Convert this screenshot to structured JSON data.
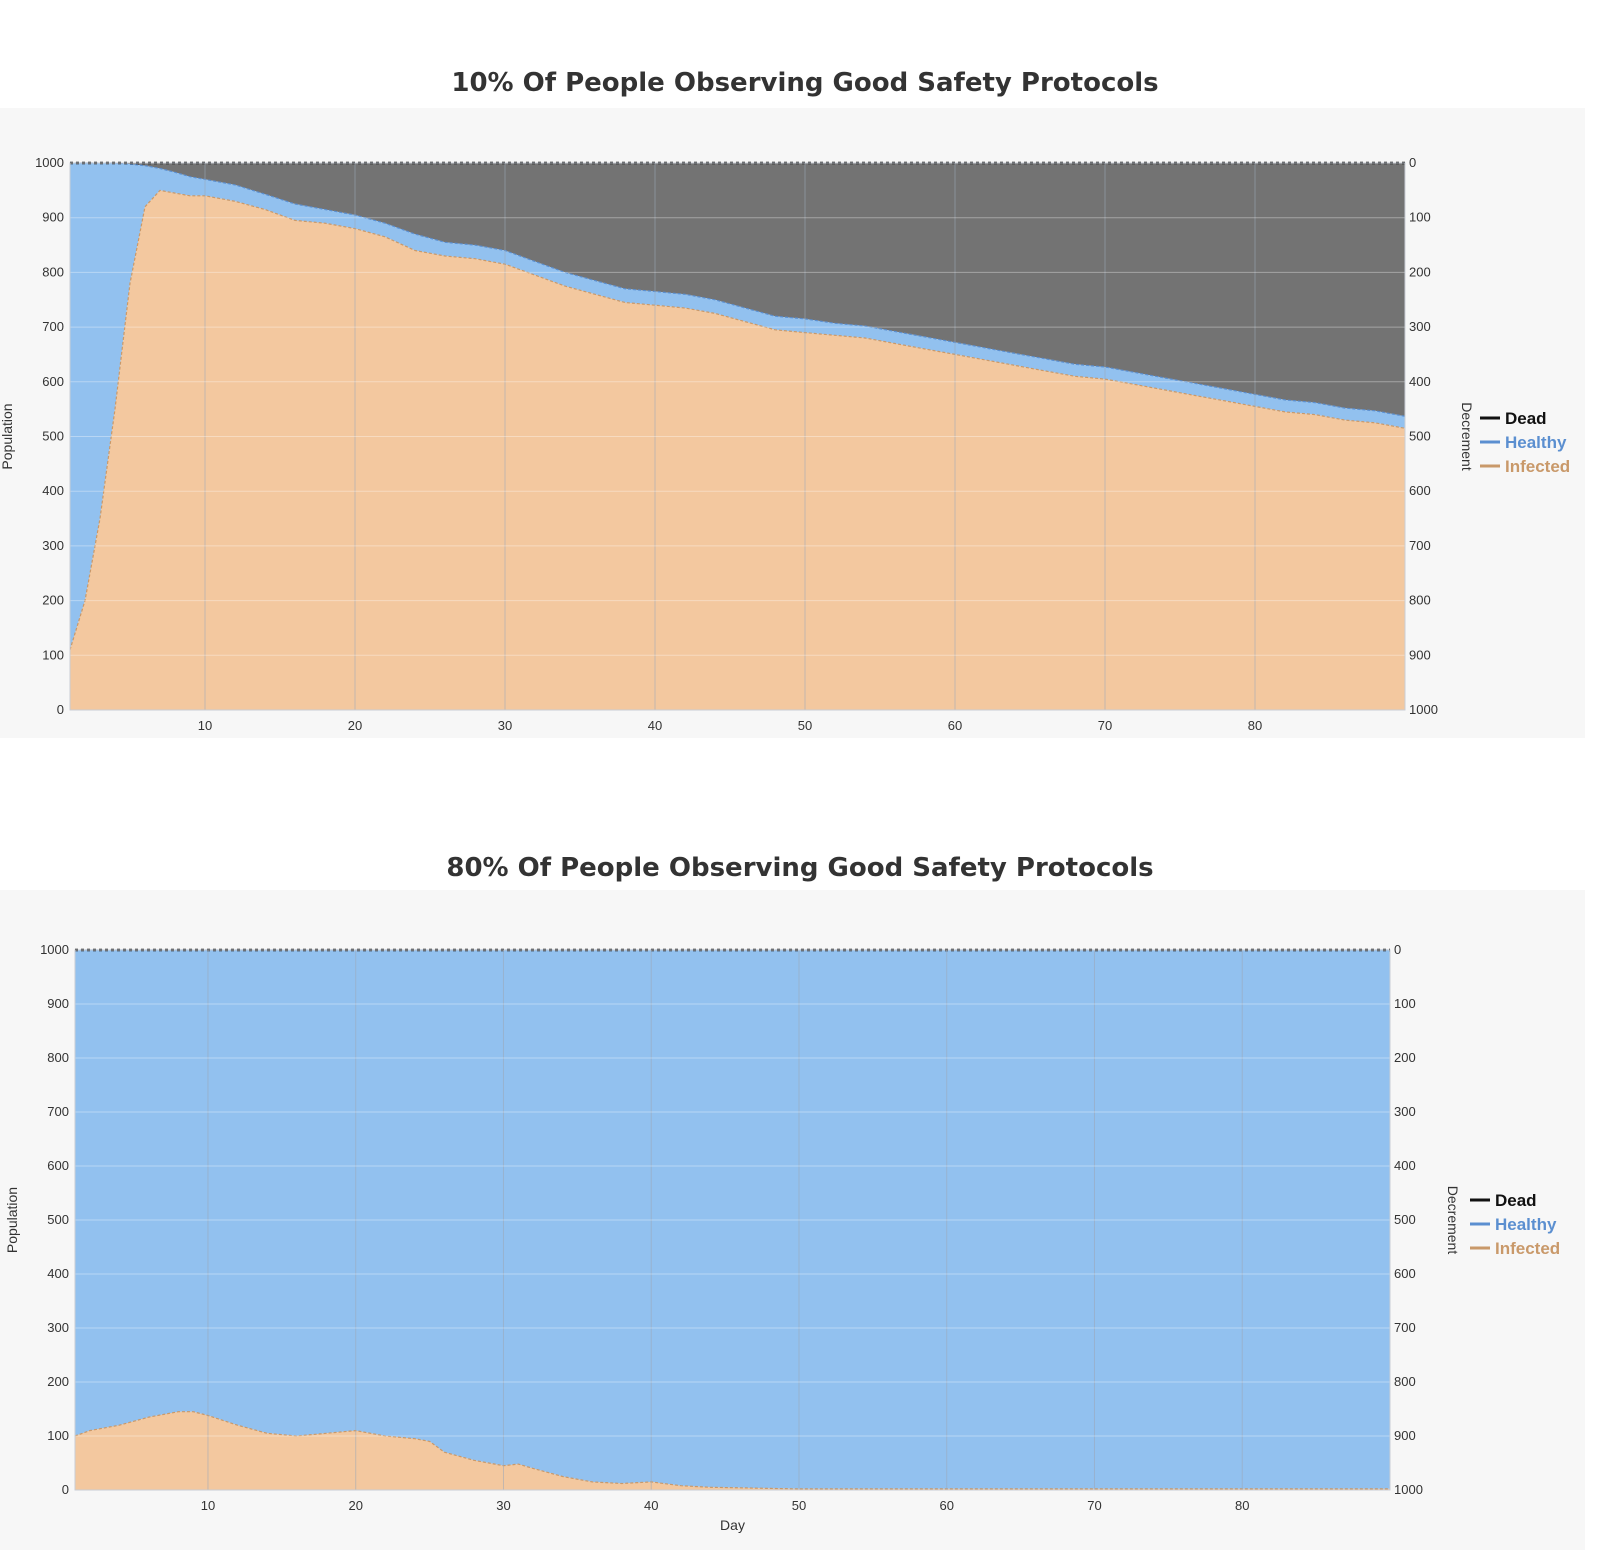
{
  "colors": {
    "dead": "#737373",
    "healthy": "#92c1ef",
    "infected": "#f3c89f",
    "healthy_line": "#5b8fd0",
    "infected_line": "#c9996a",
    "dead_line": "#111111",
    "grid": "#9aa7b6",
    "plot_border": "#c9ced6"
  },
  "chart_data": [
    {
      "type": "area",
      "stacked": true,
      "title": "10% Of People Observing Good Safety Protocols",
      "xlabel": "",
      "ylabel": "Population",
      "y2label": "Decrement",
      "xlim": [
        1,
        90
      ],
      "ylim": [
        0,
        1000
      ],
      "y2lim_inverted": [
        0,
        1000
      ],
      "xticks": [
        "10",
        "20",
        "30",
        "40",
        "50",
        "60",
        "70",
        "80"
      ],
      "yticks": [
        "0",
        "100",
        "200",
        "300",
        "400",
        "500",
        "600",
        "700",
        "800",
        "900",
        "1000"
      ],
      "y2ticks": [
        "0",
        "100",
        "200",
        "300",
        "400",
        "500",
        "600",
        "700",
        "800",
        "900",
        "1000"
      ],
      "legend": {
        "position": "right",
        "entries": [
          "Dead",
          "Healthy",
          "Infected"
        ]
      },
      "grid": true,
      "x": [
        1,
        2,
        3,
        4,
        5,
        6,
        7,
        8,
        9,
        10,
        12,
        14,
        16,
        18,
        20,
        22,
        24,
        26,
        28,
        30,
        32,
        34,
        36,
        38,
        40,
        42,
        44,
        46,
        48,
        50,
        52,
        54,
        56,
        58,
        60,
        62,
        64,
        66,
        68,
        70,
        72,
        74,
        76,
        78,
        80,
        82,
        84,
        86,
        88,
        90
      ],
      "series": [
        {
          "name": "Infected",
          "values": [
            110,
            200,
            350,
            550,
            780,
            920,
            950,
            945,
            940,
            940,
            930,
            915,
            895,
            890,
            880,
            865,
            840,
            830,
            825,
            815,
            795,
            775,
            760,
            745,
            740,
            735,
            725,
            710,
            695,
            690,
            685,
            680,
            670,
            660,
            650,
            640,
            630,
            620,
            610,
            605,
            595,
            585,
            575,
            565,
            555,
            545,
            540,
            530,
            525,
            515
          ]
        },
        {
          "name": "Healthy",
          "values": [
            890,
            800,
            650,
            450,
            218,
            75,
            40,
            38,
            35,
            30,
            30,
            28,
            30,
            25,
            25,
            25,
            30,
            25,
            25,
            25,
            25,
            25,
            25,
            25,
            25,
            25,
            25,
            25,
            25,
            25,
            22,
            22,
            22,
            22,
            22,
            22,
            22,
            22,
            22,
            22,
            22,
            22,
            22,
            22,
            22,
            22,
            22,
            22,
            22,
            22
          ]
        },
        {
          "name": "Dead",
          "values": [
            0,
            0,
            0,
            0,
            2,
            5,
            10,
            17,
            25,
            30,
            40,
            57,
            75,
            85,
            95,
            110,
            130,
            145,
            150,
            160,
            180,
            200,
            215,
            230,
            235,
            240,
            250,
            265,
            280,
            285,
            293,
            298,
            308,
            318,
            328,
            338,
            348,
            358,
            368,
            373,
            383,
            393,
            403,
            413,
            423,
            433,
            438,
            448,
            453,
            463
          ]
        }
      ]
    },
    {
      "type": "area",
      "stacked": true,
      "title": "80% Of People Observing Good Safety Protocols",
      "xlabel": "Day",
      "ylabel": "Population",
      "y2label": "Decrement",
      "xlim": [
        1,
        90
      ],
      "ylim": [
        0,
        1000
      ],
      "y2lim_inverted": [
        0,
        1000
      ],
      "xticks": [
        "10",
        "20",
        "30",
        "40",
        "50",
        "60",
        "70",
        "80"
      ],
      "yticks": [
        "0",
        "100",
        "200",
        "300",
        "400",
        "500",
        "600",
        "700",
        "800",
        "900",
        "1000"
      ],
      "y2ticks": [
        "0",
        "100",
        "200",
        "300",
        "400",
        "500",
        "600",
        "700",
        "800",
        "900",
        "1000"
      ],
      "legend": {
        "position": "right",
        "entries": [
          "Dead",
          "Healthy",
          "Infected"
        ]
      },
      "grid": true,
      "x": [
        1,
        2,
        4,
        6,
        8,
        9,
        10,
        12,
        14,
        16,
        18,
        20,
        22,
        24,
        25,
        26,
        28,
        30,
        31,
        32,
        34,
        36,
        38,
        40,
        42,
        44,
        46,
        48,
        50,
        55,
        60,
        70,
        80,
        90
      ],
      "series": [
        {
          "name": "Infected",
          "values": [
            100,
            110,
            120,
            135,
            145,
            145,
            138,
            120,
            105,
            100,
            105,
            110,
            100,
            95,
            90,
            70,
            55,
            45,
            48,
            40,
            25,
            15,
            12,
            15,
            8,
            5,
            4,
            3,
            2,
            2,
            2,
            2,
            2,
            2
          ]
        },
        {
          "name": "Healthy",
          "values": [
            900,
            890,
            880,
            865,
            855,
            855,
            862,
            880,
            895,
            900,
            895,
            890,
            900,
            905,
            910,
            930,
            945,
            955,
            952,
            960,
            975,
            985,
            988,
            985,
            992,
            995,
            996,
            997,
            998,
            998,
            998,
            998,
            998,
            998
          ]
        },
        {
          "name": "Dead",
          "values": [
            0,
            0,
            0,
            0,
            0,
            0,
            0,
            0,
            0,
            0,
            0,
            0,
            0,
            0,
            0,
            0,
            0,
            0,
            0,
            0,
            0,
            0,
            0,
            0,
            0,
            0,
            0,
            0,
            0,
            0,
            0,
            0,
            0,
            0
          ]
        }
      ]
    }
  ]
}
